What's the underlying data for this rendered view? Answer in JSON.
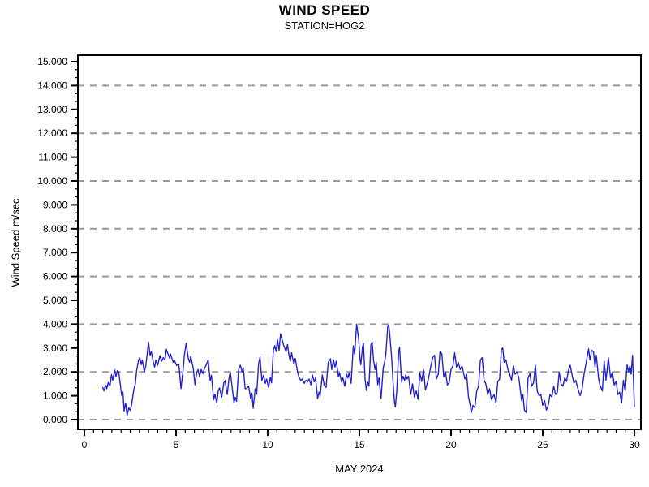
{
  "header": {
    "title": "WIND SPEED",
    "subtitle": "STATION=HOG2"
  },
  "colors": {
    "line": "#2222cc",
    "grid": "#999999",
    "axis": "#000000",
    "background": "#ffffff"
  },
  "chart_data": {
    "type": "line",
    "title": "WIND SPEED",
    "subtitle": "STATION=HOG2",
    "xlabel": "MAY 2024",
    "ylabel": "Wind Speed m/sec",
    "xlim": [
      0,
      30
    ],
    "ylim": [
      0,
      15
    ],
    "x_major_ticks": [
      0,
      5,
      10,
      15,
      20,
      25,
      30
    ],
    "x_tick_labels": [
      "0",
      "5",
      "10",
      "15",
      "20",
      "25",
      "30"
    ],
    "x_minor_step": 0.5,
    "y_major_step": 1,
    "y_minor_per_major": 2,
    "y_tick_labels": [
      "0.000",
      "1.000",
      "2.000",
      "3.000",
      "4.000",
      "5.000",
      "6.000",
      "7.000",
      "8.000",
      "9.000",
      "10.000",
      "11.000",
      "12.000",
      "13.000",
      "14.000",
      "15.000"
    ],
    "gridlines_y": [
      0,
      2,
      4,
      6,
      8,
      10,
      12,
      14
    ],
    "grid_style": "dashed",
    "legend": "none",
    "series": [
      {
        "name": "wind speed (m/sec)",
        "color": "#2222cc",
        "x": [
          1.0,
          1.07,
          1.15,
          1.22,
          1.3,
          1.4,
          1.48,
          1.55,
          1.65,
          1.72,
          1.8,
          1.87,
          2.04,
          2.1,
          2.17,
          2.25,
          2.33,
          2.42,
          2.5,
          2.57,
          2.69,
          2.78,
          2.85,
          2.96,
          3.02,
          3.1,
          3.16,
          3.27,
          3.35,
          3.5,
          3.58,
          3.65,
          3.76,
          3.83,
          3.9,
          4.0,
          4.12,
          4.22,
          4.3,
          4.4,
          4.47,
          4.65,
          4.7,
          4.84,
          4.9,
          5.03,
          5.15,
          5.27,
          5.38,
          5.45,
          5.55,
          5.67,
          5.74,
          5.8,
          5.94,
          6.03,
          6.13,
          6.2,
          6.28,
          6.37,
          6.46,
          6.56,
          6.63,
          6.75,
          6.86,
          6.93,
          7.05,
          7.12,
          7.22,
          7.3,
          7.37,
          7.49,
          7.6,
          7.67,
          7.79,
          7.89,
          7.96,
          8.08,
          8.16,
          8.23,
          8.3,
          8.41,
          8.51,
          8.6,
          8.67,
          8.77,
          8.85,
          8.96,
          9.07,
          9.14,
          9.21,
          9.32,
          9.4,
          9.5,
          9.58,
          9.68,
          9.77,
          9.87,
          9.94,
          10.05,
          10.14,
          10.21,
          10.31,
          10.38,
          10.46,
          10.53,
          10.62,
          10.7,
          10.8,
          10.9,
          11.0,
          11.08,
          11.16,
          11.23,
          11.3,
          11.43,
          11.5,
          11.63,
          11.7,
          11.8,
          11.88,
          11.99,
          12.07,
          12.17,
          12.25,
          12.36,
          12.44,
          12.54,
          12.61,
          12.72,
          12.8,
          12.86,
          12.98,
          13.08,
          13.18,
          13.3,
          13.42,
          13.49,
          13.59,
          13.67,
          13.74,
          13.86,
          13.92,
          14.03,
          14.1,
          14.2,
          14.3,
          14.37,
          14.44,
          14.55,
          14.67,
          14.74,
          14.85,
          14.96,
          15.04,
          15.08,
          15.17,
          15.22,
          15.31,
          15.38,
          15.45,
          15.52,
          15.63,
          15.7,
          15.77,
          15.85,
          15.92,
          16.0,
          16.07,
          16.18,
          16.3,
          16.37,
          16.44,
          16.55,
          16.6,
          16.66,
          16.77,
          16.84,
          16.91,
          16.96,
          17.04,
          17.14,
          17.19,
          17.3,
          17.38,
          17.46,
          17.53,
          17.6,
          17.68,
          17.8,
          17.9,
          18.0,
          18.1,
          18.2,
          18.3,
          18.4,
          18.5,
          18.6,
          18.75,
          18.9,
          19.0,
          19.1,
          19.2,
          19.3,
          19.4,
          19.5,
          19.6,
          19.7,
          19.8,
          19.9,
          20.0,
          20.1,
          20.2,
          20.3,
          20.4,
          20.5,
          20.6,
          20.75,
          20.85,
          20.95,
          21.05,
          21.1,
          21.2,
          21.3,
          21.4,
          21.5,
          21.6,
          21.7,
          21.8,
          21.9,
          22.0,
          22.1,
          22.2,
          22.35,
          22.45,
          22.55,
          22.65,
          22.75,
          22.82,
          22.9,
          23.0,
          23.1,
          23.2,
          23.3,
          23.4,
          23.5,
          23.6,
          23.7,
          23.85,
          23.92,
          24.0,
          24.1,
          24.2,
          24.3,
          24.4,
          24.5,
          24.6,
          24.7,
          24.8,
          24.9,
          25.0,
          25.1,
          25.2,
          25.3,
          25.4,
          25.5,
          25.6,
          25.7,
          25.8,
          25.9,
          26.0,
          26.1,
          26.2,
          26.3,
          26.4,
          26.5,
          26.62,
          26.7,
          26.8,
          26.9,
          27.04,
          27.15,
          27.25,
          27.35,
          27.5,
          27.57,
          27.67,
          27.77,
          27.85,
          27.92,
          28.05,
          28.12,
          28.25,
          28.35,
          28.45,
          28.58,
          28.7,
          28.8,
          28.9,
          29.0,
          29.1,
          29.2,
          29.3,
          29.4,
          29.5,
          29.6,
          29.68,
          29.75,
          29.82,
          29.9,
          30.0
        ],
        "y": [
          1.35,
          1.2,
          1.45,
          1.3,
          1.55,
          1.42,
          1.88,
          1.65,
          2.08,
          1.8,
          2.05,
          2.0,
          1.0,
          1.15,
          0.36,
          0.7,
          0.18,
          0.5,
          0.38,
          0.6,
          1.23,
          1.5,
          2.05,
          2.5,
          2.6,
          2.3,
          2.5,
          2.0,
          2.25,
          3.25,
          2.7,
          2.85,
          2.4,
          2.2,
          2.5,
          2.28,
          2.68,
          2.45,
          2.6,
          2.5,
          2.95,
          2.57,
          2.75,
          2.4,
          2.5,
          2.27,
          2.33,
          1.3,
          2.05,
          2.68,
          3.2,
          2.57,
          2.4,
          2.65,
          2.16,
          1.46,
          1.98,
          2.1,
          1.8,
          2.1,
          1.93,
          2.16,
          2.27,
          2.5,
          1.64,
          1.86,
          0.83,
          1.06,
          0.7,
          1.2,
          1.33,
          0.94,
          1.53,
          1.64,
          1.05,
          1.75,
          2.0,
          1.23,
          0.71,
          0.94,
          0.77,
          2.1,
          2.28,
          2.0,
          2.16,
          1.3,
          1.3,
          1.4,
          0.88,
          1.1,
          0.48,
          1.3,
          1.06,
          2.33,
          2.62,
          1.64,
          1.86,
          1.52,
          1.7,
          1.35,
          1.77,
          1.54,
          2.92,
          3.1,
          2.85,
          3.35,
          2.9,
          3.6,
          3.3,
          3.05,
          2.85,
          3.15,
          2.7,
          2.45,
          2.8,
          2.33,
          2.57,
          2.0,
          1.8,
          1.64,
          1.7,
          1.52,
          1.64,
          1.58,
          1.7,
          1.46,
          1.87,
          1.58,
          1.75,
          0.88,
          1.16,
          1.0,
          1.87,
          1.45,
          1.35,
          2.4,
          2.55,
          2.1,
          2.5,
          2.2,
          2.45,
          1.8,
          1.95,
          1.57,
          1.75,
          1.4,
          1.9,
          1.75,
          1.95,
          1.52,
          3.1,
          2.75,
          4.0,
          3.38,
          2.5,
          2.3,
          3.03,
          3.2,
          1.7,
          1.23,
          1.57,
          1.4,
          3.14,
          3.25,
          2.5,
          2.1,
          2.4,
          1.46,
          1.75,
          0.88,
          2.16,
          2.4,
          2.7,
          3.9,
          3.97,
          3.55,
          2.5,
          1.52,
          0.77,
          0.53,
          1.2,
          2.85,
          3.03,
          1.58,
          1.82,
          1.64,
          1.87,
          1.7,
          1.82,
          1.05,
          1.5,
          0.95,
          1.2,
          0.85,
          1.95,
          1.6,
          2.1,
          1.25,
          1.65,
          2.25,
          2.6,
          2.7,
          1.7,
          1.9,
          2.85,
          2.75,
          1.8,
          2.0,
          1.45,
          1.55,
          2.1,
          2.25,
          2.8,
          2.2,
          2.4,
          2.1,
          2.25,
          1.7,
          1.9,
          0.95,
          0.6,
          0.3,
          0.6,
          0.5,
          1.2,
          1.4,
          2.5,
          2.6,
          1.65,
          1.5,
          1.05,
          1.3,
          0.85,
          1.05,
          0.7,
          1.6,
          1.7,
          2.95,
          3.0,
          2.4,
          2.5,
          2.1,
          1.9,
          1.65,
          2.25,
          1.9,
          2.0,
          1.75,
          0.8,
          1.05,
          0.4,
          0.3,
          1.75,
          1.93,
          1.4,
          1.55,
          2.28,
          1.2,
          1.0,
          1.05,
          0.6,
          0.8,
          0.4,
          0.6,
          1.05,
          0.95,
          1.4,
          1.05,
          1.15,
          2.0,
          1.5,
          1.4,
          1.75,
          1.6,
          2.05,
          2.28,
          1.8,
          1.53,
          1.65,
          1.35,
          1.0,
          1.3,
          1.9,
          2.3,
          2.97,
          2.5,
          2.9,
          2.85,
          2.2,
          2.7,
          1.7,
          1.45,
          1.2,
          2.45,
          1.65,
          2.6,
          1.75,
          2.0,
          1.45,
          1.6,
          1.05,
          1.15,
          0.7,
          1.65,
          1.2,
          2.3,
          2.0,
          2.25,
          1.9,
          2.7,
          0.55
        ]
      }
    ]
  }
}
